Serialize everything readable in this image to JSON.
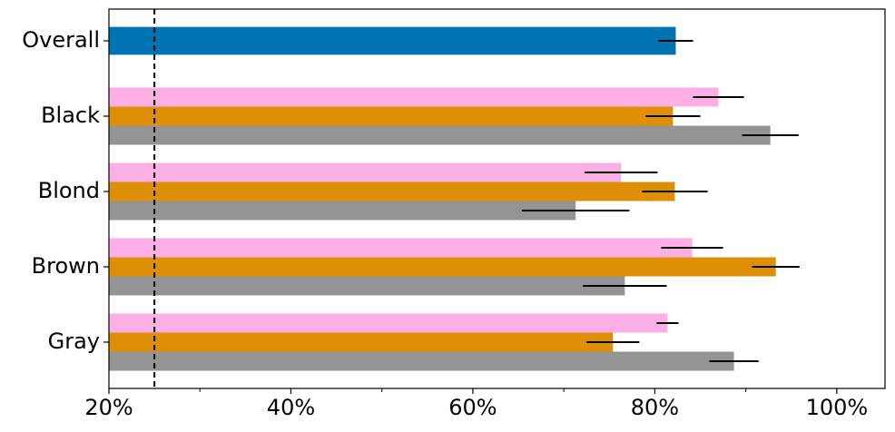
{
  "chart_data": {
    "type": "barh",
    "categories": [
      "Overall",
      "Black",
      "Blond",
      "Brown",
      "Gray"
    ],
    "series": [
      {
        "color": "#0173b2",
        "values": [
          82.3,
          null,
          null,
          null,
          null
        ],
        "errors": [
          1.9,
          null,
          null,
          null,
          null
        ]
      },
      {
        "color": "#fbafe4",
        "values": [
          null,
          87.0,
          76.3,
          84.1,
          81.4
        ],
        "errors": [
          null,
          2.8,
          4.0,
          3.4,
          1.2
        ]
      },
      {
        "color": "#de8f05",
        "values": [
          null,
          82.0,
          82.2,
          93.3,
          75.4
        ],
        "errors": [
          null,
          3.0,
          3.6,
          2.6,
          2.9
        ]
      },
      {
        "color": "#949494",
        "values": [
          null,
          92.7,
          71.3,
          76.7,
          88.7
        ],
        "errors": [
          null,
          3.1,
          5.9,
          4.6,
          2.7
        ]
      }
    ],
    "xlim": [
      20,
      105.3
    ],
    "xticks": [
      {
        "value": 20,
        "label": "20%"
      },
      {
        "value": 40,
        "label": "40%"
      },
      {
        "value": 60,
        "label": "60%"
      },
      {
        "value": 80,
        "label": "80%"
      },
      {
        "value": 100,
        "label": "100%"
      }
    ],
    "xminor_ticks": [
      30,
      50,
      70,
      90
    ],
    "reference_line": 25,
    "grid": false
  }
}
